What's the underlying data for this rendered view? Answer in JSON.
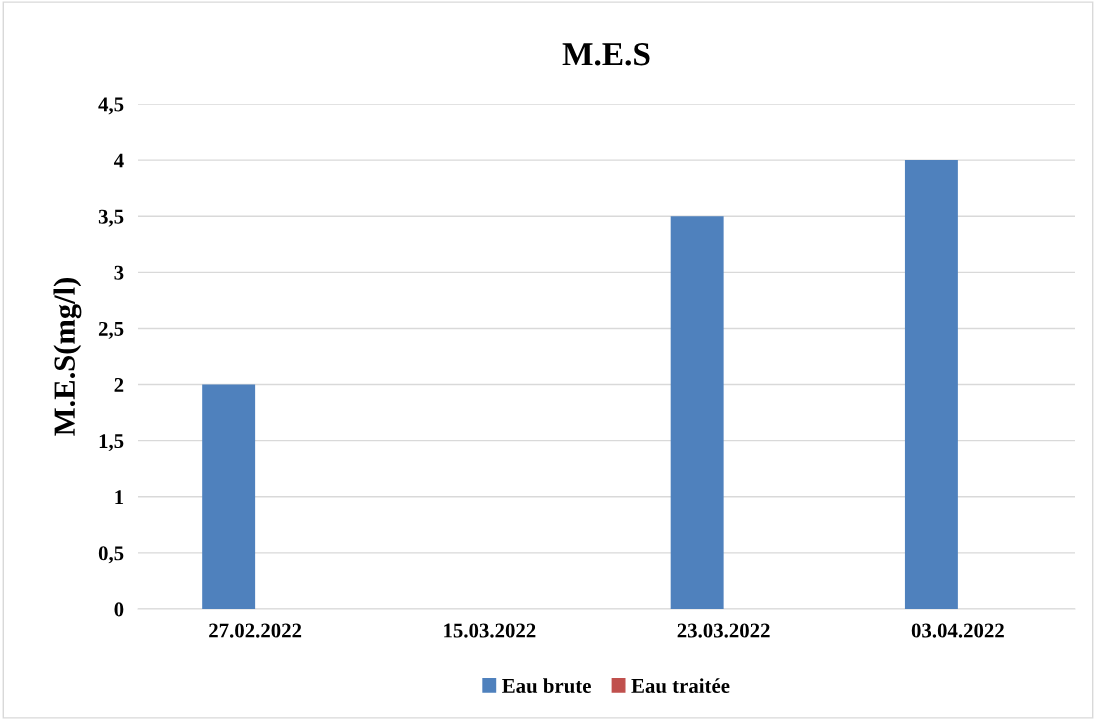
{
  "chart_data": {
    "type": "bar",
    "title": "M.E.S",
    "ylabel": "M.E.S(mg/l)",
    "categories": [
      "27.02.2022",
      "15.03.2022",
      "23.03.2022",
      "03.04.2022"
    ],
    "series": [
      {
        "name": "Eau brute",
        "color": "#4f81bd",
        "values": [
          2,
          0,
          3.5,
          4
        ]
      },
      {
        "name": "Eau traitée",
        "color": "#c0504d",
        "values": [
          0,
          0,
          0,
          0
        ]
      }
    ],
    "ylim": [
      0,
      4.5
    ],
    "yticks": [
      {
        "value": 0,
        "label": "0"
      },
      {
        "value": 0.5,
        "label": "0,5"
      },
      {
        "value": 1,
        "label": "1"
      },
      {
        "value": 1.5,
        "label": "1,5"
      },
      {
        "value": 2,
        "label": "2"
      },
      {
        "value": 2.5,
        "label": "2,5"
      },
      {
        "value": 3,
        "label": "3"
      },
      {
        "value": 3.5,
        "label": "3,5"
      },
      {
        "value": 4,
        "label": "4"
      },
      {
        "value": 4.5,
        "label": "4,5"
      }
    ],
    "grid": "y",
    "legend": "bottom"
  }
}
